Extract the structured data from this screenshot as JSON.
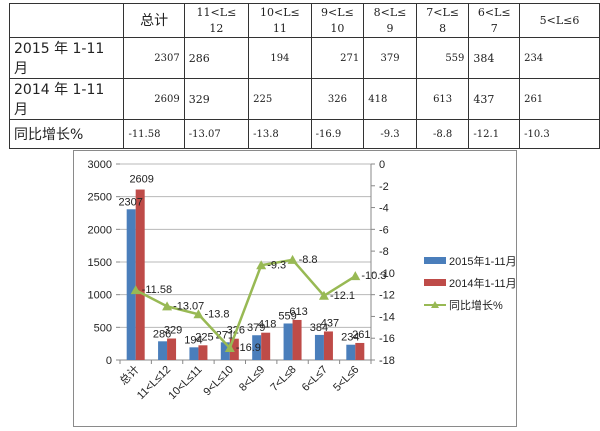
{
  "table": {
    "header": [
      "",
      "总计",
      "11<L≤12",
      "10<L≤11",
      "9<L≤10",
      "8<L≤9",
      "7<L≤8",
      "6<L≤7",
      "5<L≤6"
    ],
    "header_lines": [
      [
        "",
        ""
      ],
      [
        "总计",
        ""
      ],
      [
        "11<L≤",
        "12"
      ],
      [
        "10<L≤",
        "11"
      ],
      [
        "9<L≤",
        "10"
      ],
      [
        "8<L≤",
        "9"
      ],
      [
        "7<L≤",
        "8"
      ],
      [
        "6<L≤",
        "7"
      ],
      [
        "5<L≤6",
        ""
      ]
    ],
    "rows": [
      {
        "label": "2015 年 1-11 月",
        "values": [
          "2307",
          "286",
          "194",
          "271",
          "379",
          "559",
          "384",
          "234"
        ]
      },
      {
        "label": "2014 年 1-11 月",
        "values": [
          "2609",
          "329",
          "225",
          "326",
          "418",
          "613",
          "437",
          "261"
        ]
      },
      {
        "label": "同比增长%",
        "values": [
          "-11.58",
          "-13.07",
          "-13.8",
          "-16.9",
          "-9.3",
          "-8.8",
          "-12.1",
          "-10.3"
        ]
      }
    ]
  },
  "chart_data": {
    "type": "bar",
    "title": "",
    "categories": [
      "总计",
      "11<L≤12",
      "10<L≤11",
      "9<L≤10",
      "8<L≤9",
      "7<L≤8",
      "6<L≤7",
      "5<L≤6"
    ],
    "series": [
      {
        "name": "2015年1-11月",
        "type": "bar",
        "axis": "left",
        "color": "#4a7ebb",
        "values": [
          2307,
          286,
          194,
          271,
          379,
          559,
          384,
          234
        ]
      },
      {
        "name": "2014年1-11月",
        "type": "bar",
        "axis": "left",
        "color": "#be4b48",
        "values": [
          2609,
          329,
          225,
          326,
          418,
          613,
          437,
          261
        ]
      },
      {
        "name": "同比增长%",
        "type": "line",
        "axis": "right",
        "color": "#98b954",
        "marker": "triangle",
        "values": [
          -11.58,
          -13.07,
          -13.8,
          -16.9,
          -9.3,
          -8.8,
          -12.1,
          -10.3
        ]
      }
    ],
    "y_left": {
      "min": 0,
      "max": 3000,
      "ticks": [
        0,
        500,
        1000,
        1500,
        2000,
        2500,
        3000
      ]
    },
    "y_right": {
      "min": -18,
      "max": 0,
      "ticks": [
        0,
        -2,
        -4,
        -6,
        -8,
        -10,
        -12,
        -14,
        -16,
        -18
      ]
    },
    "xlabel": "",
    "ylabel": "",
    "grid": true,
    "legend_position": "right",
    "data_labels": true
  },
  "legend": {
    "items": [
      "2015年1-11月",
      "2014年1-11月",
      "同比增长%"
    ]
  }
}
